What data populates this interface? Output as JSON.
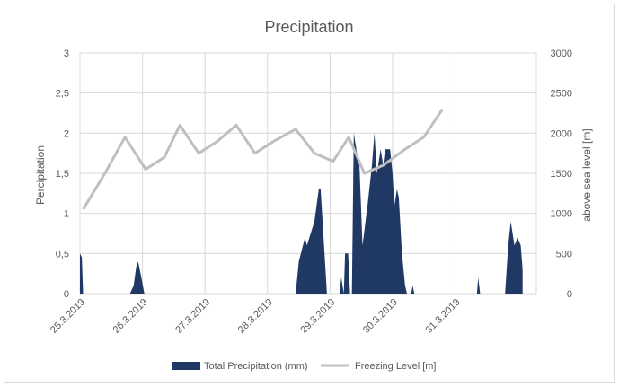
{
  "chart_data": {
    "type": "area+line",
    "title": "Precipitation",
    "y_left_label": "Percipitation",
    "y_right_label": "above sea level [m]",
    "y_left_ticks": [
      "0",
      "0,5",
      "1",
      "1,5",
      "2",
      "2,5",
      "3"
    ],
    "y_right_ticks": [
      "0",
      "500",
      "1000",
      "1500",
      "2000",
      "2500",
      "3000"
    ],
    "ylim_left": [
      0,
      3
    ],
    "ylim_right": [
      0,
      3000
    ],
    "x_range": [
      0,
      7.3
    ],
    "x_tick_labels": [
      "25.3.2019",
      "26.3.2019",
      "27.3.2019",
      "28.3.2019",
      "29.3.2019",
      "30.3.2019",
      "31.3.2019"
    ],
    "x_tick_values": [
      0,
      1,
      2,
      3,
      4,
      5,
      6
    ],
    "grid": true,
    "legend_position": "bottom",
    "series": [
      {
        "name": "Total Precipitation (mm)",
        "kind": "area",
        "axis": "left",
        "color": "#203864",
        "points": [
          [
            0.0,
            0.5
          ],
          [
            0.03,
            0.45
          ],
          [
            0.05,
            0.0
          ],
          [
            0.8,
            0.0
          ],
          [
            0.86,
            0.1
          ],
          [
            0.9,
            0.33
          ],
          [
            0.93,
            0.4
          ],
          [
            0.97,
            0.25
          ],
          [
            1.03,
            0.0
          ],
          [
            3.45,
            0.0
          ],
          [
            3.5,
            0.4
          ],
          [
            3.6,
            0.7
          ],
          [
            3.63,
            0.6
          ],
          [
            3.75,
            0.9
          ],
          [
            3.82,
            1.3
          ],
          [
            3.85,
            1.3
          ],
          [
            3.95,
            0.0
          ],
          [
            4.15,
            0.0
          ],
          [
            4.18,
            0.2
          ],
          [
            4.22,
            0.0
          ],
          [
            4.24,
            0.5
          ],
          [
            4.29,
            0.5
          ],
          [
            4.32,
            0.0
          ],
          [
            4.35,
            0.0
          ],
          [
            4.38,
            2.0
          ],
          [
            4.42,
            1.8
          ],
          [
            4.47,
            1.6
          ],
          [
            4.52,
            0.6
          ],
          [
            4.6,
            1.1
          ],
          [
            4.67,
            1.6
          ],
          [
            4.71,
            2.0
          ],
          [
            4.75,
            1.5
          ],
          [
            4.81,
            1.8
          ],
          [
            4.85,
            1.6
          ],
          [
            4.88,
            1.8
          ],
          [
            4.96,
            1.8
          ],
          [
            5.0,
            1.5
          ],
          [
            5.03,
            1.1
          ],
          [
            5.07,
            1.3
          ],
          [
            5.1,
            1.2
          ],
          [
            5.15,
            0.5
          ],
          [
            5.2,
            0.1
          ],
          [
            5.23,
            0.0
          ],
          [
            5.3,
            0.0
          ],
          [
            5.32,
            0.1
          ],
          [
            5.35,
            0.0
          ],
          [
            6.35,
            0.0
          ],
          [
            6.37,
            0.2
          ],
          [
            6.4,
            0.0
          ],
          [
            6.8,
            0.0
          ],
          [
            6.85,
            0.6
          ],
          [
            6.89,
            0.9
          ],
          [
            6.95,
            0.6
          ],
          [
            7.0,
            0.7
          ],
          [
            7.05,
            0.6
          ],
          [
            7.08,
            0.3
          ],
          [
            7.08,
            0.0
          ]
        ]
      },
      {
        "name": "Freezing Level [m]",
        "kind": "line",
        "axis": "right",
        "color": "#bfbfbf",
        "points": [
          [
            0.05,
            1050
          ],
          [
            0.4,
            1500
          ],
          [
            0.72,
            1950
          ],
          [
            1.05,
            1550
          ],
          [
            1.35,
            1700
          ],
          [
            1.6,
            2100
          ],
          [
            1.9,
            1750
          ],
          [
            2.2,
            1900
          ],
          [
            2.5,
            2100
          ],
          [
            2.8,
            1750
          ],
          [
            3.1,
            1900
          ],
          [
            3.45,
            2050
          ],
          [
            3.75,
            1750
          ],
          [
            4.05,
            1650
          ],
          [
            4.3,
            1950
          ],
          [
            4.55,
            1500
          ],
          [
            4.85,
            1600
          ],
          [
            5.2,
            1800
          ],
          [
            5.5,
            1950
          ],
          [
            5.8,
            2300
          ]
        ]
      }
    ]
  }
}
